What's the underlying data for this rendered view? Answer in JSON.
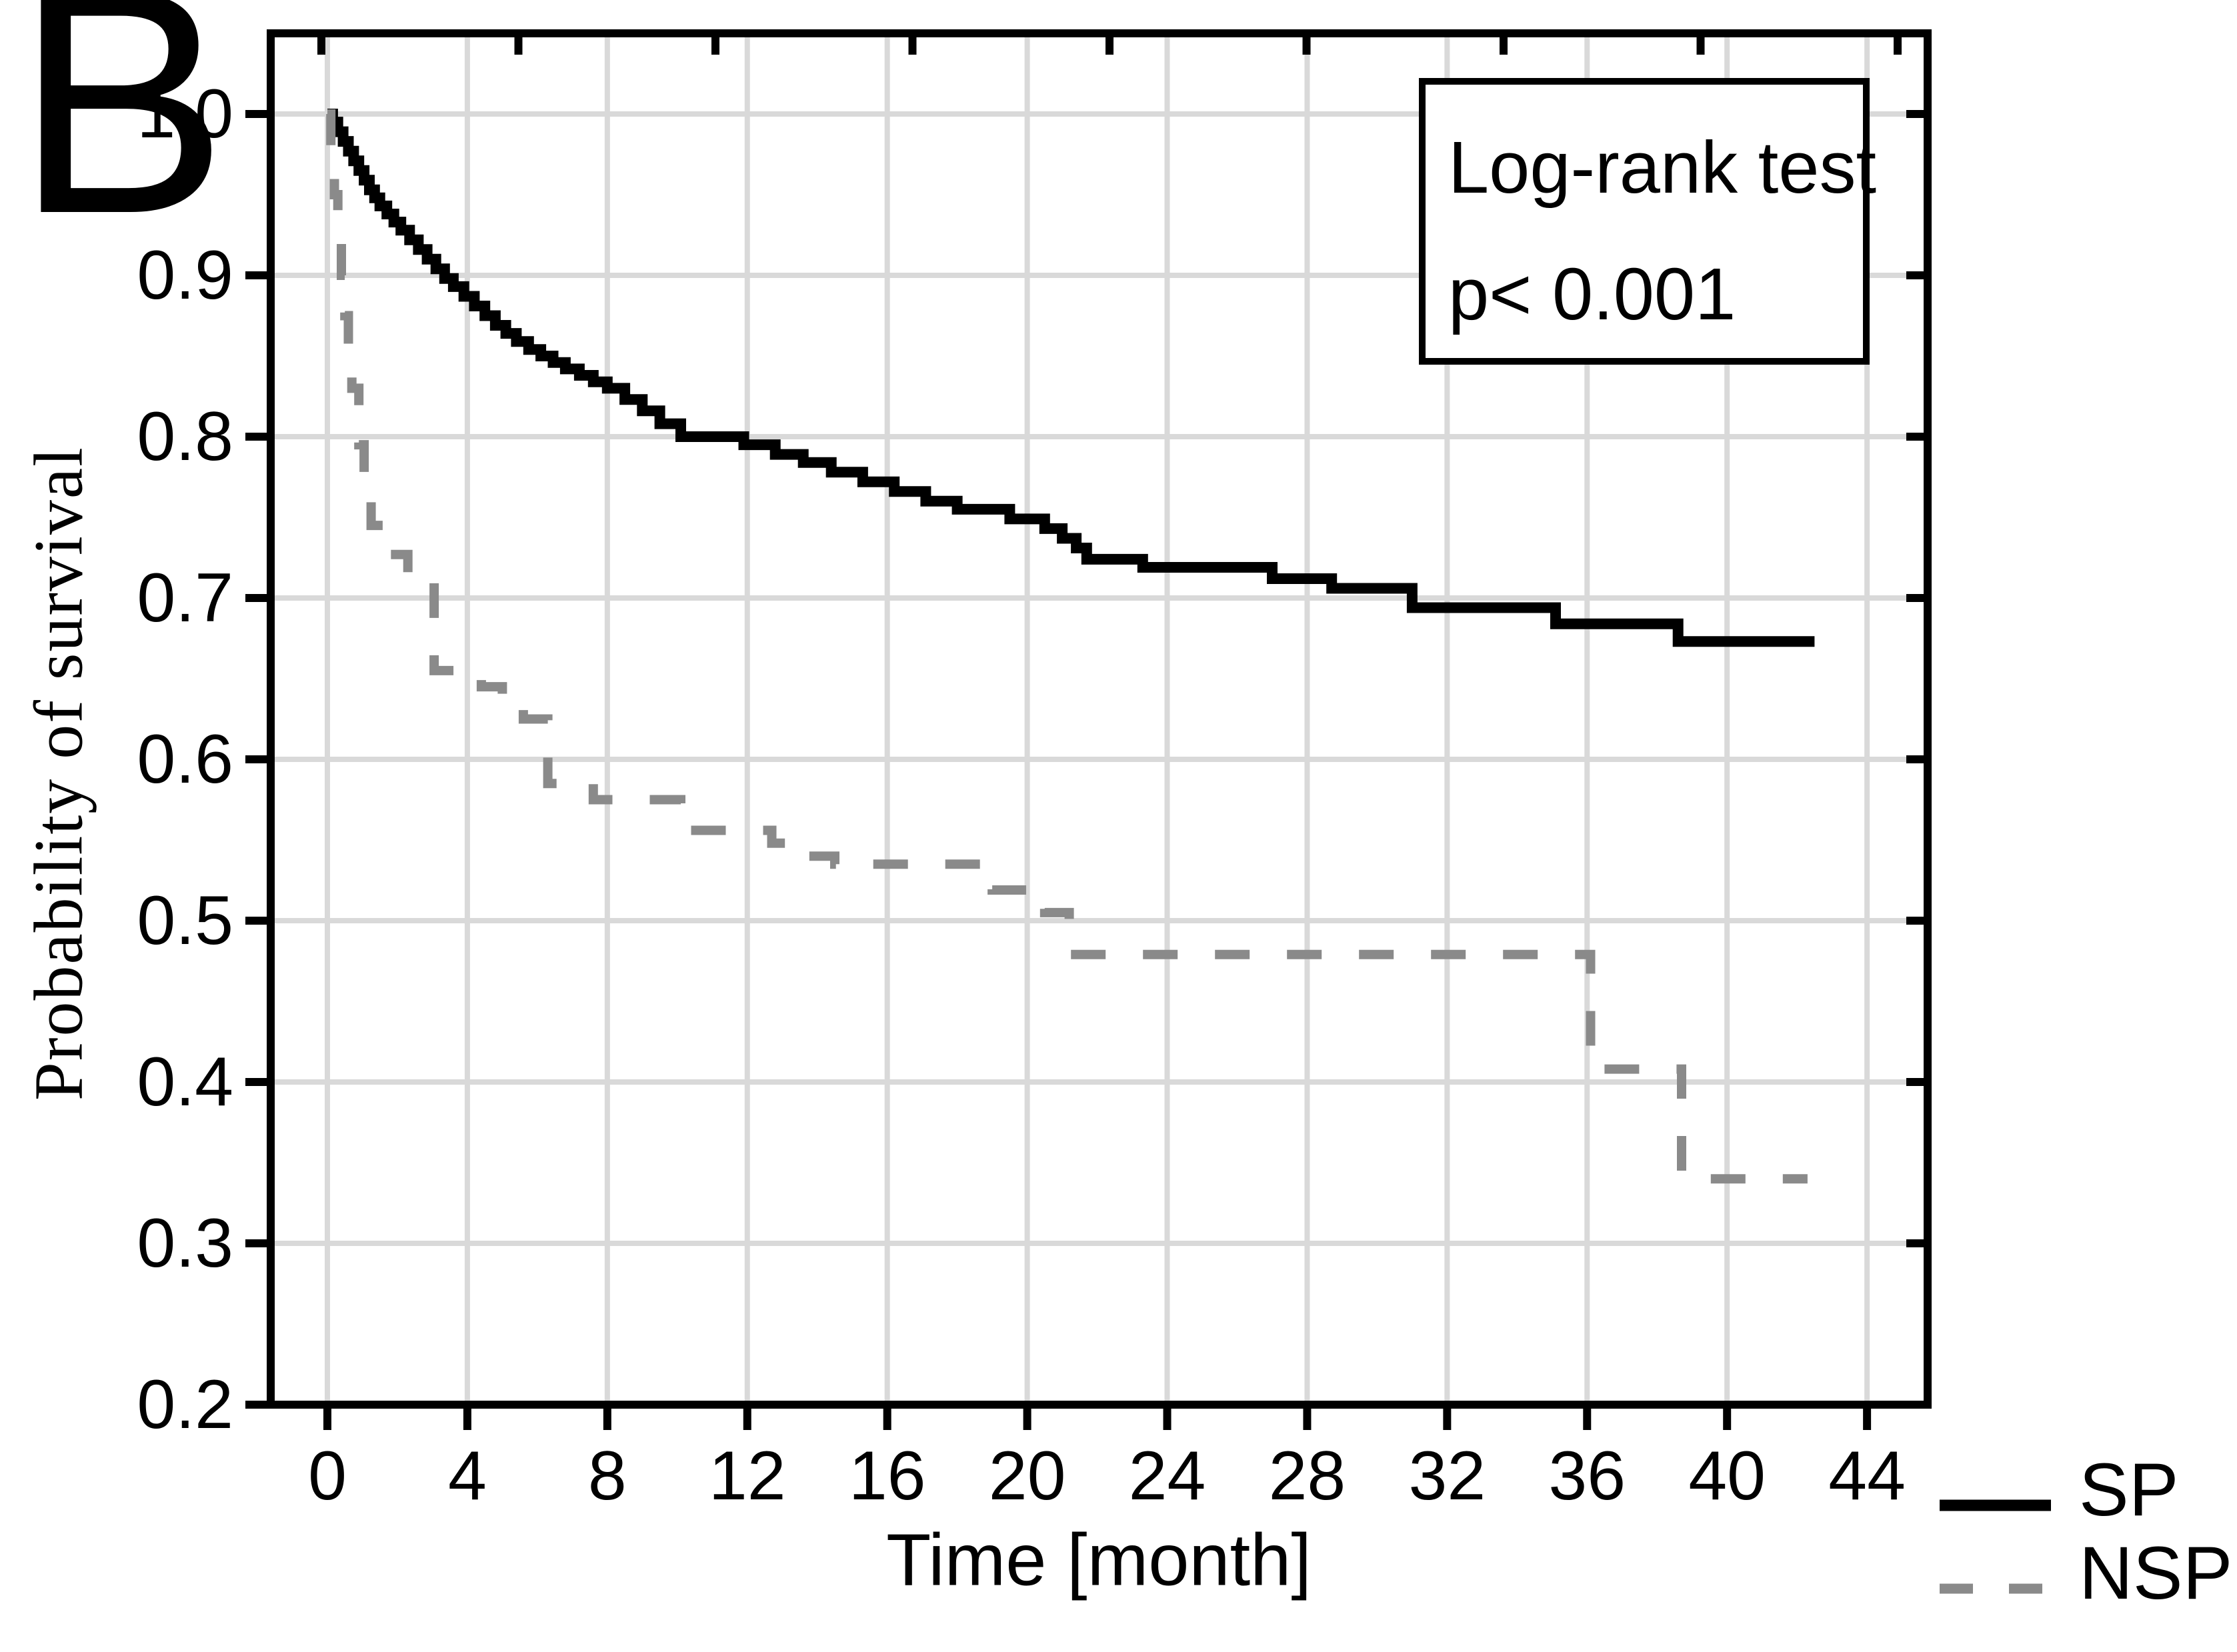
{
  "panel_label": "B",
  "axes": {
    "y_label": "Probability of survival",
    "x_label": "Time [month]",
    "y_tick_labels": [
      "1.0",
      "0.9",
      "0.8",
      "0.7",
      "0.6",
      "0.5",
      "0.4",
      "0.3",
      "0.2"
    ],
    "x_tick_labels": [
      "0",
      "4",
      "8",
      "12",
      "16",
      "20",
      "24",
      "28",
      "32",
      "36",
      "40",
      "44"
    ]
  },
  "annotation": {
    "line1": "Log-rank test",
    "line2": "p< 0.001"
  },
  "legend": {
    "items": [
      {
        "label": "SP",
        "style": "solid",
        "color": "#000000"
      },
      {
        "label": "NSP",
        "style": "dashed",
        "color": "#8a8a8a"
      }
    ]
  },
  "colors": {
    "sp_line": "#000000",
    "nsp_line": "#8a8a8a",
    "gridline": "#d9d9d9",
    "axis": "#000000",
    "background": "#ffffff"
  },
  "chart_data": {
    "type": "line",
    "subtype": "kaplan-meier-step",
    "title": "",
    "xlabel": "Time [month]",
    "ylabel": "Probability of survival",
    "xlim": [
      0,
      44
    ],
    "ylim": [
      0.2,
      1.0
    ],
    "x_gridline_step_months": 4,
    "y_gridline_step": 0.1,
    "grid": true,
    "legend_position": "bottom-right-outside",
    "annotation_text": "Log-rank test p< 0.001",
    "series": [
      {
        "name": "SP",
        "line": "solid",
        "color": "#000000",
        "steps": [
          [
            0,
            1.0
          ],
          [
            0.15,
            0.995
          ],
          [
            0.3,
            0.989
          ],
          [
            0.45,
            0.983
          ],
          [
            0.6,
            0.977
          ],
          [
            0.75,
            0.971
          ],
          [
            0.9,
            0.965
          ],
          [
            1.05,
            0.959
          ],
          [
            1.2,
            0.953
          ],
          [
            1.35,
            0.948
          ],
          [
            1.5,
            0.943
          ],
          [
            1.7,
            0.938
          ],
          [
            1.9,
            0.933
          ],
          [
            2.1,
            0.928
          ],
          [
            2.35,
            0.922
          ],
          [
            2.6,
            0.916
          ],
          [
            2.85,
            0.91
          ],
          [
            3.1,
            0.904
          ],
          [
            3.35,
            0.898
          ],
          [
            3.6,
            0.893
          ],
          [
            3.9,
            0.887
          ],
          [
            4.2,
            0.881
          ],
          [
            4.5,
            0.875
          ],
          [
            4.8,
            0.869
          ],
          [
            5.1,
            0.864
          ],
          [
            5.4,
            0.859
          ],
          [
            5.75,
            0.854
          ],
          [
            6.1,
            0.85
          ],
          [
            6.45,
            0.846
          ],
          [
            6.8,
            0.842
          ],
          [
            7.2,
            0.838
          ],
          [
            7.6,
            0.834
          ],
          [
            8.0,
            0.83
          ],
          [
            8.5,
            0.823
          ],
          [
            9.0,
            0.816
          ],
          [
            9.5,
            0.808
          ],
          [
            10.1,
            0.8
          ],
          [
            11.9,
            0.795
          ],
          [
            12.8,
            0.789
          ],
          [
            13.6,
            0.784
          ],
          [
            14.4,
            0.778
          ],
          [
            15.3,
            0.772
          ],
          [
            16.2,
            0.766
          ],
          [
            17.1,
            0.76
          ],
          [
            18.0,
            0.755
          ],
          [
            19.5,
            0.749
          ],
          [
            20.5,
            0.743
          ],
          [
            21.0,
            0.737
          ],
          [
            21.4,
            0.731
          ],
          [
            21.7,
            0.724
          ],
          [
            23.3,
            0.719
          ],
          [
            27.0,
            0.712
          ],
          [
            28.7,
            0.706
          ],
          [
            31.0,
            0.694
          ],
          [
            35.1,
            0.684
          ],
          [
            38.6,
            0.673
          ],
          [
            42.5,
            0.673
          ]
        ]
      },
      {
        "name": "NSP",
        "line": "dashed",
        "color": "#8a8a8a",
        "steps": [
          [
            0,
            1.0
          ],
          [
            0.1,
            0.975
          ],
          [
            0.2,
            0.95
          ],
          [
            0.3,
            0.925
          ],
          [
            0.4,
            0.9
          ],
          [
            0.5,
            0.875
          ],
          [
            0.6,
            0.852
          ],
          [
            0.7,
            0.83
          ],
          [
            0.9,
            0.795
          ],
          [
            1.05,
            0.772
          ],
          [
            1.25,
            0.745
          ],
          [
            1.75,
            0.727
          ],
          [
            2.3,
            0.71
          ],
          [
            3.05,
            0.655
          ],
          [
            4.4,
            0.645
          ],
          [
            5.0,
            0.635
          ],
          [
            5.6,
            0.625
          ],
          [
            6.3,
            0.585
          ],
          [
            7.6,
            0.575
          ],
          [
            10.1,
            0.556
          ],
          [
            12.7,
            0.548
          ],
          [
            13.6,
            0.54
          ],
          [
            14.5,
            0.535
          ],
          [
            19.0,
            0.519
          ],
          [
            20.5,
            0.505
          ],
          [
            21.2,
            0.479
          ],
          [
            36.1,
            0.408
          ],
          [
            38.7,
            0.34
          ],
          [
            42.3,
            0.34
          ]
        ]
      }
    ]
  }
}
